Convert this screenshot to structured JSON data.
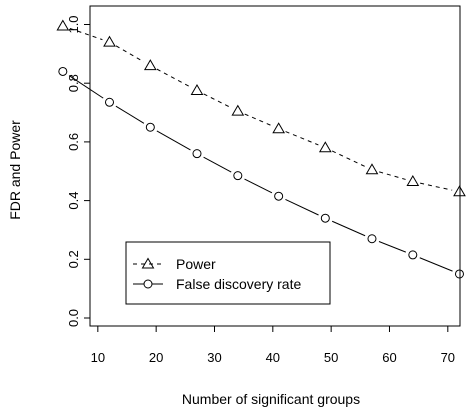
{
  "chart_data": {
    "type": "line",
    "xlabel": "Number of significant groups",
    "ylabel": "FDR and Power",
    "xlim": [
      2,
      75
    ],
    "ylim": [
      0,
      1.0
    ],
    "x_ticks": [
      10,
      20,
      30,
      40,
      50,
      60,
      70
    ],
    "y_ticks": [
      0.0,
      0.2,
      0.4,
      0.6,
      0.8,
      1.0
    ],
    "x_tick_labels": [
      "10",
      "20",
      "30",
      "40",
      "50",
      "60",
      "70"
    ],
    "y_tick_labels": [
      "0.0",
      "0.2",
      "0.4",
      "0.6",
      "0.8",
      "1.0"
    ],
    "grid": false,
    "legend_position": "bottom-left",
    "x": [
      4,
      12,
      19,
      27,
      34,
      41,
      49,
      57,
      64,
      72
    ],
    "series": [
      {
        "name": "Power",
        "line_style": "dashed",
        "marker": "triangle",
        "values": [
          0.995,
          0.94,
          0.86,
          0.775,
          0.705,
          0.645,
          0.58,
          0.505,
          0.465,
          0.43
        ]
      },
      {
        "name": "False discovery rate",
        "line_style": "solid",
        "marker": "circle",
        "values": [
          0.84,
          0.735,
          0.65,
          0.56,
          0.485,
          0.415,
          0.34,
          0.27,
          0.215,
          0.15
        ]
      }
    ]
  }
}
